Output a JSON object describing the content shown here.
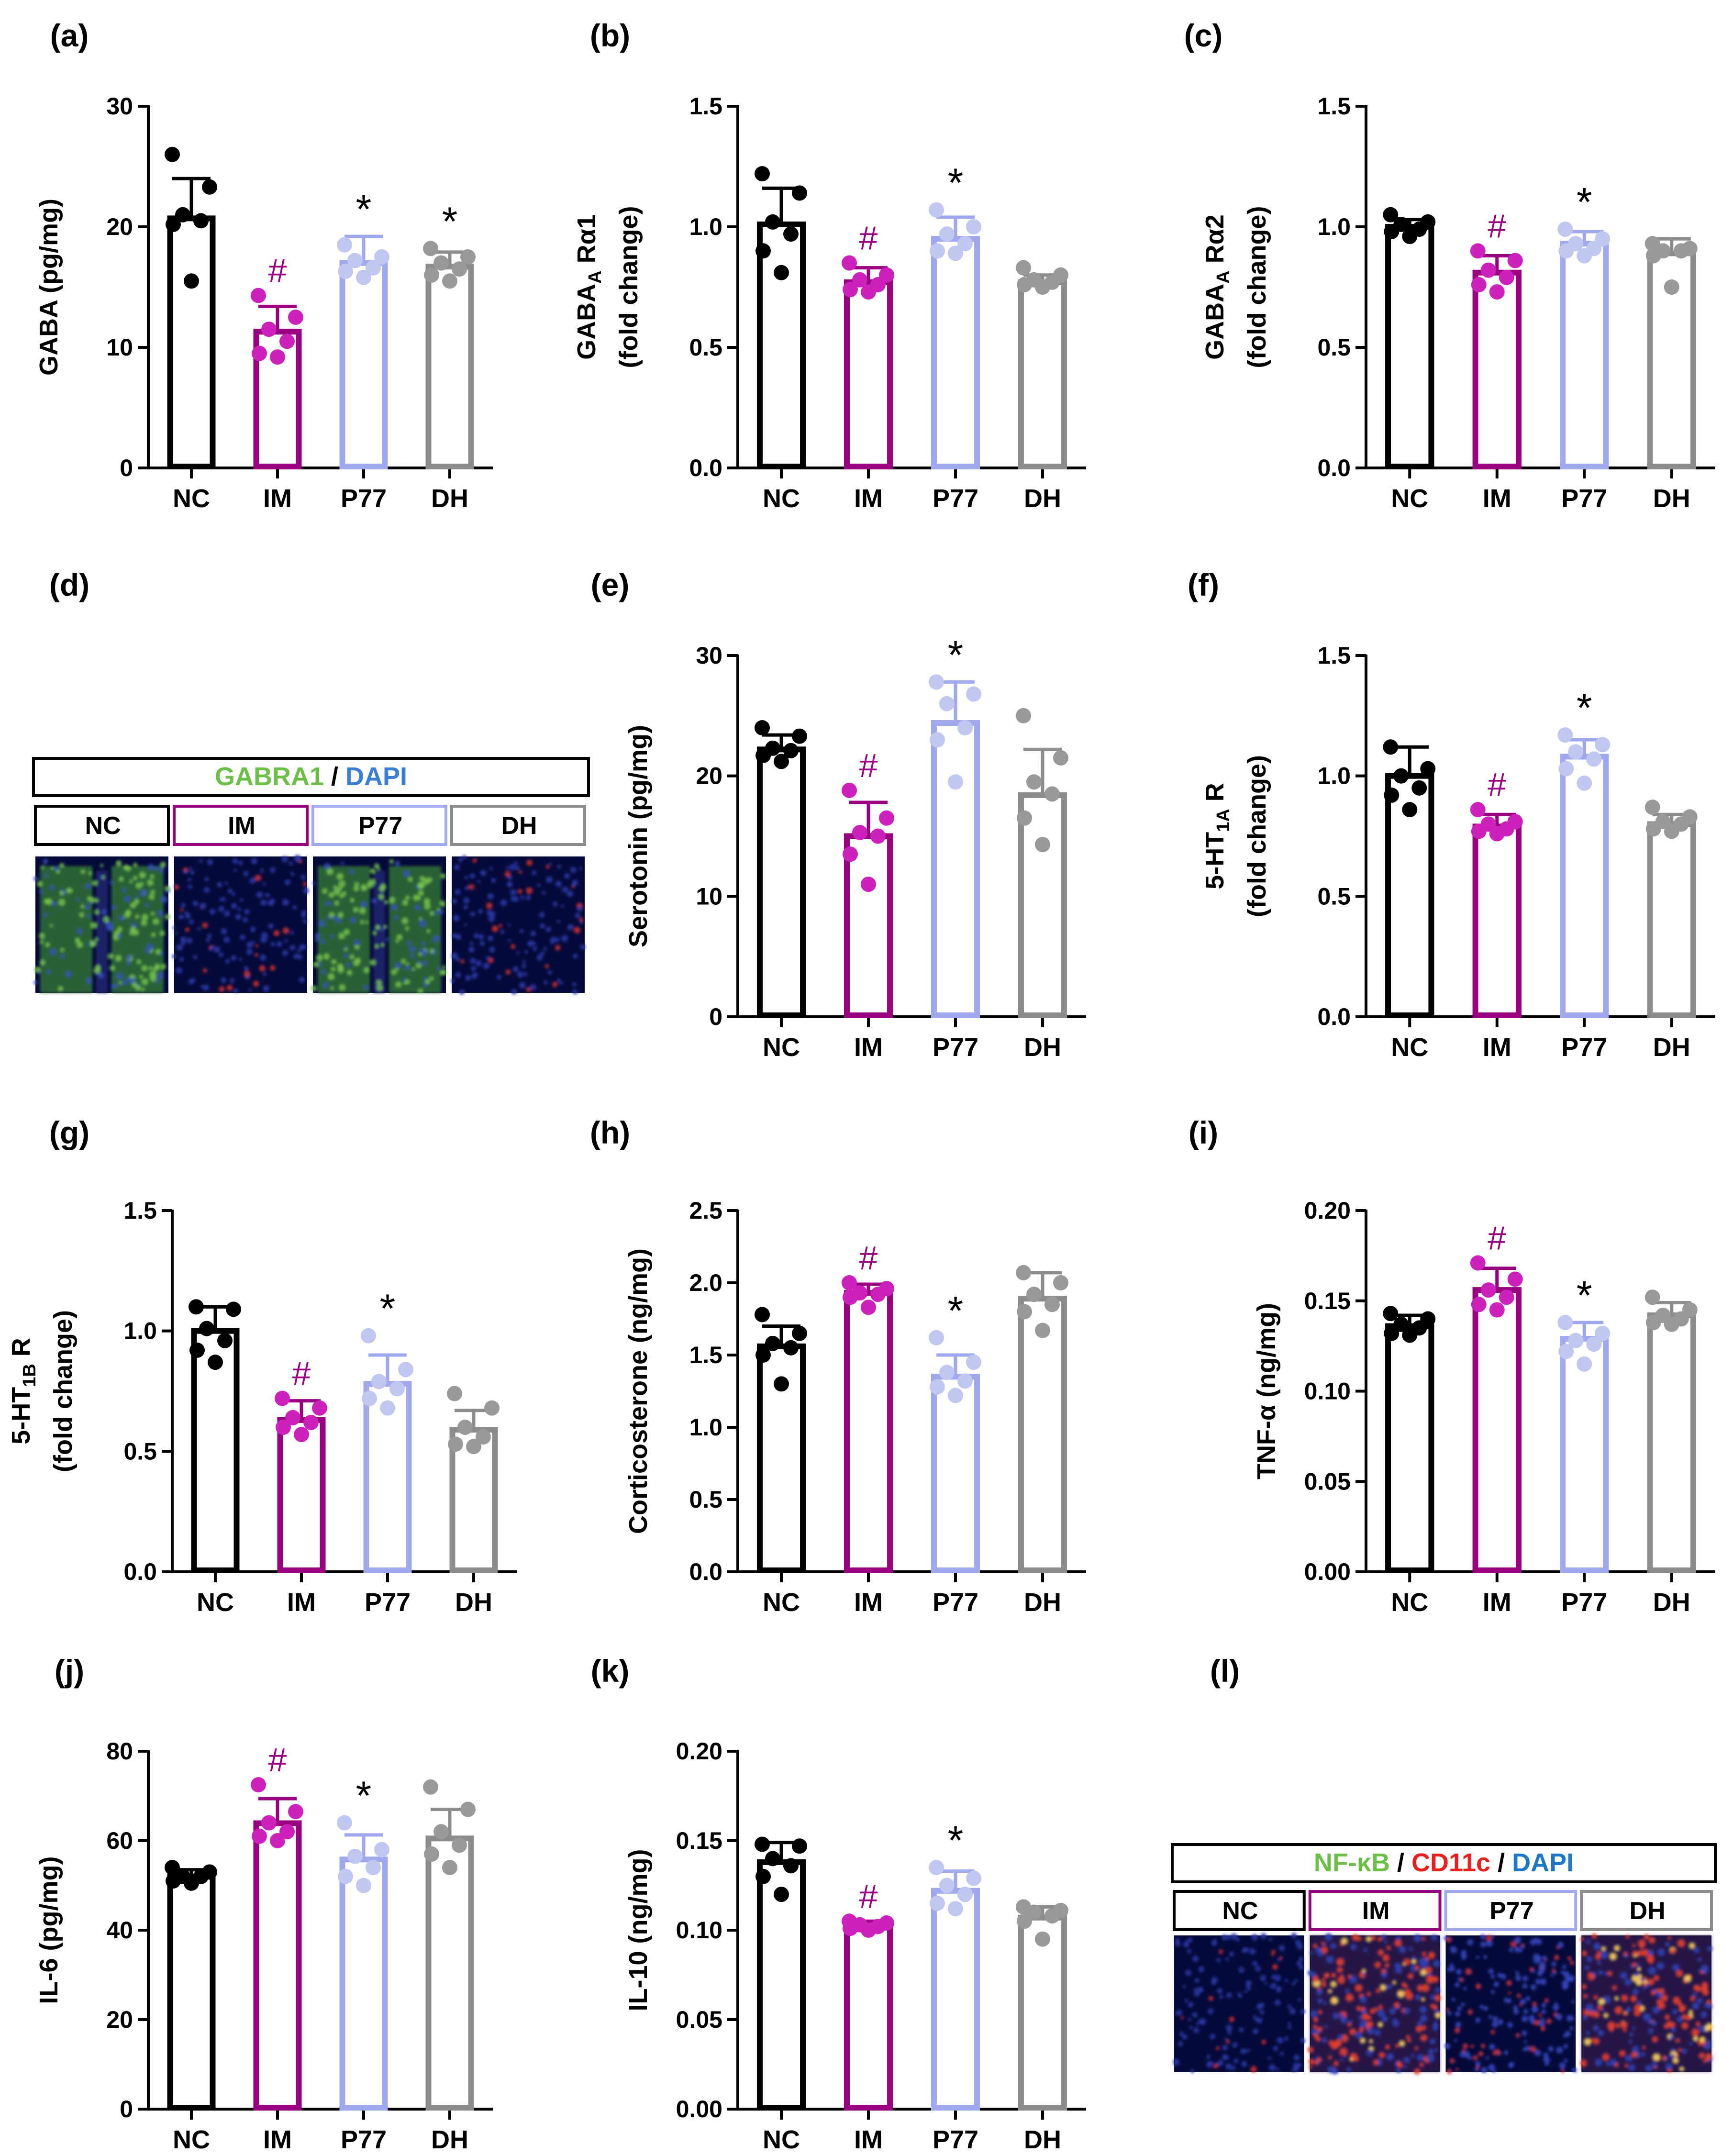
{
  "figure": {
    "colors": {
      "NC": "#000000",
      "IM": "#990080",
      "P77": "#a0a8ee",
      "DH": "#8c8c8c"
    },
    "dot_colors": {
      "NC": "#000000",
      "IM": "#cc22bb",
      "P77": "#c0c8f2",
      "DH": "#999999"
    },
    "micrographs": [
      {
        "panel": "(d)",
        "stain_parts": [
          {
            "text": "GABRA1",
            "color": "#6cc04a"
          },
          {
            "text": " / ",
            "color": "#000000"
          },
          {
            "text": "DAPI",
            "color": "#3b7fd4"
          }
        ],
        "groups": [
          "NC",
          "IM",
          "P77",
          "DH"
        ],
        "fluorescence": [
          "green-dense",
          "blue-sparse",
          "green-dense",
          "blue-sparse"
        ]
      },
      {
        "panel": "(l)",
        "stain_parts": [
          {
            "text": "NF-κB",
            "color": "#6cc04a"
          },
          {
            "text": " / ",
            "color": "#000000"
          },
          {
            "text": "CD11c",
            "color": "#e8201e"
          },
          {
            "text": " / ",
            "color": "#000000"
          },
          {
            "text": "DAPI",
            "color": "#1f77c8"
          }
        ],
        "groups": [
          "NC",
          "IM",
          "P77",
          "DH"
        ],
        "fluorescence": [
          "blue-sparse",
          "red-dense",
          "blue-mixed",
          "red-dense"
        ]
      }
    ]
  },
  "chart_data": [
    {
      "panel": "(a)",
      "type": "bar",
      "ylabel_lines": [
        "GABA (pg/mg)"
      ],
      "ylim": [
        0,
        30
      ],
      "yticks": [
        "0",
        "10",
        "20",
        "30"
      ],
      "categories": [
        "NC",
        "IM",
        "P77",
        "DH"
      ],
      "values": [
        20.7,
        11.3,
        17.0,
        16.7
      ],
      "errors": [
        3.3,
        2.1,
        2.2,
        1.2
      ],
      "points": [
        [
          26,
          23.3,
          21,
          20.5,
          20.2,
          15.5
        ],
        [
          14.3,
          12.5,
          11.5,
          10.5,
          9.5,
          9.2
        ],
        [
          18.5,
          17.5,
          17.2,
          16.6,
          16.3,
          15.8
        ],
        [
          18.2,
          17.5,
          17.0,
          16.5,
          16.0,
          15.5
        ]
      ],
      "annotations": [
        "",
        "#",
        "*",
        "*"
      ]
    },
    {
      "panel": "(b)",
      "type": "bar",
      "ylabel_lines": [
        "GABA_A Rα1",
        "(fold change)"
      ],
      "ylim": [
        0,
        1.5
      ],
      "yticks": [
        "0.0",
        "0.5",
        "1.0",
        "1.5"
      ],
      "categories": [
        "NC",
        "IM",
        "P77",
        "DH"
      ],
      "values": [
        1.01,
        0.77,
        0.95,
        0.77
      ],
      "errors": [
        0.15,
        0.06,
        0.09,
        0.03
      ],
      "points": [
        [
          1.22,
          1.14,
          1.02,
          0.97,
          0.9,
          0.81
        ],
        [
          0.85,
          0.8,
          0.78,
          0.76,
          0.74,
          0.73
        ],
        [
          1.07,
          1.0,
          0.97,
          0.93,
          0.9,
          0.89
        ],
        [
          0.83,
          0.8,
          0.78,
          0.77,
          0.76,
          0.75
        ]
      ],
      "annotations": [
        "",
        "#",
        "*",
        ""
      ]
    },
    {
      "panel": "(c)",
      "type": "bar",
      "ylabel_lines": [
        "GABA_A Rα2",
        "(fold change)"
      ],
      "ylim": [
        0,
        1.5
      ],
      "yticks": [
        "0.0",
        "0.5",
        "1.0",
        "1.5"
      ],
      "categories": [
        "NC",
        "IM",
        "P77",
        "DH"
      ],
      "values": [
        1.0,
        0.81,
        0.93,
        0.89
      ],
      "errors": [
        0.03,
        0.07,
        0.05,
        0.06
      ],
      "points": [
        [
          1.05,
          1.02,
          1.01,
          0.99,
          0.98,
          0.96
        ],
        [
          0.9,
          0.86,
          0.82,
          0.79,
          0.76,
          0.73
        ],
        [
          0.99,
          0.95,
          0.93,
          0.91,
          0.9,
          0.88
        ],
        [
          0.93,
          0.91,
          0.9,
          0.9,
          0.88,
          0.75
        ]
      ],
      "annotations": [
        "",
        "#",
        "*",
        ""
      ]
    },
    {
      "panel": "(e)",
      "type": "bar",
      "ylabel_lines": [
        "Serotonin (pg/mg)"
      ],
      "ylim": [
        0,
        30
      ],
      "yticks": [
        "0",
        "10",
        "20",
        "30"
      ],
      "categories": [
        "NC",
        "IM",
        "P77",
        "DH"
      ],
      "values": [
        22.2,
        15.0,
        24.4,
        18.4
      ],
      "errors": [
        1.2,
        2.8,
        3.4,
        3.8
      ],
      "points": [
        [
          24,
          23.3,
          22.3,
          22.1,
          21.7,
          21.2
        ],
        [
          18.8,
          16.5,
          15.3,
          15.0,
          13.5,
          11.0
        ],
        [
          27.8,
          26.8,
          26.0,
          24.0,
          23.0,
          19.5
        ],
        [
          25.0,
          21.5,
          19.5,
          18.5,
          16.5,
          14.3
        ]
      ],
      "annotations": [
        "",
        "#",
        "*",
        ""
      ]
    },
    {
      "panel": "(f)",
      "type": "bar",
      "ylabel_lines": [
        "5-HT_1A R",
        "(fold change)"
      ],
      "ylim": [
        0,
        1.5
      ],
      "yticks": [
        "0.0",
        "0.5",
        "1.0",
        "1.5"
      ],
      "categories": [
        "NC",
        "IM",
        "P77",
        "DH"
      ],
      "values": [
        1.0,
        0.79,
        1.08,
        0.8
      ],
      "errors": [
        0.12,
        0.05,
        0.07,
        0.04
      ],
      "points": [
        [
          1.12,
          1.03,
          1.0,
          0.95,
          0.92,
          0.86
        ],
        [
          0.86,
          0.81,
          0.8,
          0.78,
          0.77,
          0.76
        ],
        [
          1.17,
          1.13,
          1.1,
          1.07,
          1.03,
          0.97
        ],
        [
          0.87,
          0.83,
          0.81,
          0.8,
          0.78,
          0.77
        ]
      ],
      "annotations": [
        "",
        "#",
        "*",
        ""
      ]
    },
    {
      "panel": "(g)",
      "type": "bar",
      "ylabel_lines": [
        "5-HT_1B R",
        "(fold change)"
      ],
      "ylim": [
        0,
        1.5
      ],
      "yticks": [
        "0.0",
        "0.5",
        "1.0",
        "1.5"
      ],
      "categories": [
        "NC",
        "IM",
        "P77",
        "DH"
      ],
      "values": [
        1.0,
        0.63,
        0.78,
        0.59
      ],
      "errors": [
        0.1,
        0.08,
        0.12,
        0.08
      ],
      "points": [
        [
          1.1,
          1.09,
          1.01,
          0.96,
          0.92,
          0.87
        ],
        [
          0.72,
          0.68,
          0.64,
          0.62,
          0.6,
          0.57
        ],
        [
          0.98,
          0.84,
          0.79,
          0.76,
          0.72,
          0.68
        ],
        [
          0.74,
          0.68,
          0.6,
          0.56,
          0.53,
          0.52
        ]
      ],
      "annotations": [
        "",
        "#",
        "*",
        ""
      ]
    },
    {
      "panel": "(h)",
      "type": "bar",
      "ylabel_lines": [
        "Corticosterone (ng/mg)"
      ],
      "ylim": [
        0,
        2.5
      ],
      "yticks": [
        "0.0",
        "0.5",
        "1.0",
        "1.5",
        "2.0",
        "2.5"
      ],
      "categories": [
        "NC",
        "IM",
        "P77",
        "DH"
      ],
      "values": [
        1.56,
        1.93,
        1.35,
        1.89
      ],
      "errors": [
        0.14,
        0.06,
        0.15,
        0.18
      ],
      "points": [
        [
          1.78,
          1.65,
          1.58,
          1.55,
          1.5,
          1.3
        ],
        [
          2.0,
          1.96,
          1.93,
          1.92,
          1.9,
          1.83
        ],
        [
          1.62,
          1.45,
          1.38,
          1.32,
          1.28,
          1.22
        ],
        [
          2.07,
          2.0,
          1.92,
          1.85,
          1.8,
          1.67
        ]
      ],
      "annotations": [
        "",
        "#",
        "*",
        ""
      ]
    },
    {
      "panel": "(i)",
      "type": "bar",
      "ylabel_lines": [
        "TNF-α (ng/mg)"
      ],
      "ylim": [
        0,
        0.2
      ],
      "yticks": [
        "0.00",
        "0.05",
        "0.10",
        "0.15",
        "0.20"
      ],
      "categories": [
        "NC",
        "IM",
        "P77",
        "DH"
      ],
      "values": [
        0.136,
        0.156,
        0.129,
        0.142
      ],
      "errors": [
        0.006,
        0.012,
        0.009,
        0.007
      ],
      "points": [
        [
          0.143,
          0.14,
          0.137,
          0.135,
          0.132,
          0.131
        ],
        [
          0.171,
          0.162,
          0.156,
          0.152,
          0.148,
          0.145
        ],
        [
          0.138,
          0.132,
          0.128,
          0.126,
          0.122,
          0.115
        ],
        [
          0.152,
          0.145,
          0.142,
          0.14,
          0.138,
          0.137
        ]
      ],
      "annotations": [
        "",
        "#",
        "*",
        ""
      ]
    },
    {
      "panel": "(j)",
      "type": "bar",
      "ylabel_lines": [
        "IL-6 (pg/mg)"
      ],
      "ylim": [
        0,
        80
      ],
      "yticks": [
        "0",
        "20",
        "40",
        "60",
        "80"
      ],
      "categories": [
        "NC",
        "IM",
        "P77",
        "DH"
      ],
      "values": [
        52.0,
        63.9,
        55.8,
        60.5
      ],
      "errors": [
        1.5,
        5.5,
        5.5,
        6.5
      ],
      "points": [
        [
          54,
          53,
          52,
          52,
          51,
          50.5
        ],
        [
          72.5,
          66.5,
          64,
          62,
          61,
          60
        ],
        [
          64,
          58,
          56.5,
          54,
          52,
          50
        ],
        [
          72,
          67,
          62,
          59,
          57,
          54
        ]
      ],
      "annotations": [
        "",
        "#",
        "*",
        ""
      ]
    },
    {
      "panel": "(k)",
      "type": "bar",
      "ylabel_lines": [
        "IL-10 (ng/mg)"
      ],
      "ylim": [
        0,
        0.2
      ],
      "yticks": [
        "0.00",
        "0.05",
        "0.10",
        "0.15",
        "0.20"
      ],
      "categories": [
        "NC",
        "IM",
        "P77",
        "DH"
      ],
      "values": [
        0.138,
        0.102,
        0.122,
        0.107
      ],
      "errors": [
        0.011,
        0.003,
        0.011,
        0.006
      ],
      "points": [
        [
          0.148,
          0.147,
          0.14,
          0.136,
          0.13,
          0.12
        ],
        [
          0.105,
          0.104,
          0.103,
          0.102,
          0.101,
          0.1
        ],
        [
          0.135,
          0.129,
          0.125,
          0.12,
          0.115,
          0.112
        ],
        [
          0.113,
          0.111,
          0.11,
          0.108,
          0.105,
          0.095
        ]
      ],
      "annotations": [
        "",
        "#",
        "*",
        ""
      ]
    }
  ]
}
